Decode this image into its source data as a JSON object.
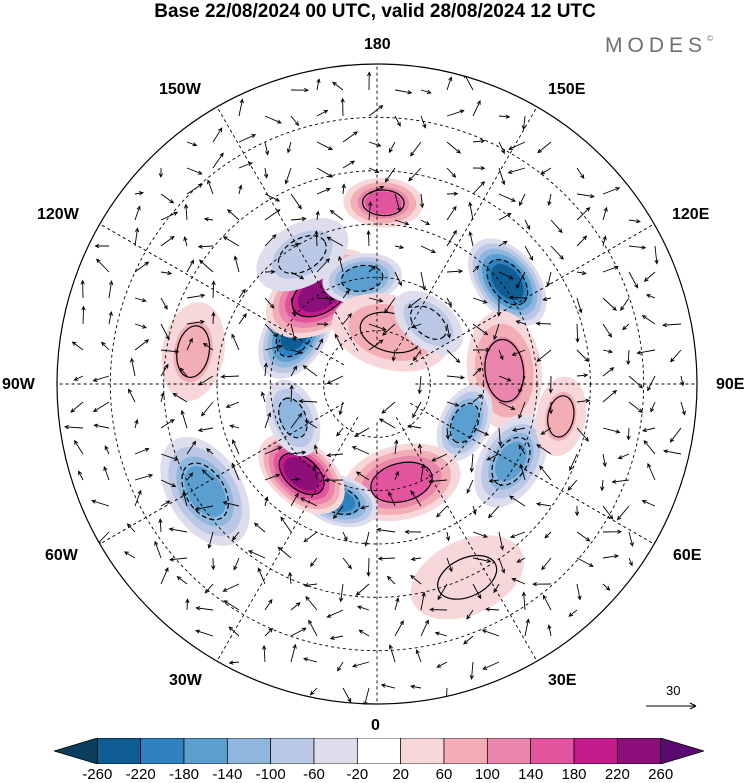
{
  "title": "Base 22/08/2024 00 UTC, valid 28/08/2024 12 UTC",
  "brand": "MODES",
  "brand_mark": "©",
  "longitude_labels": [
    "180",
    "150E",
    "120E",
    "90E",
    "60E",
    "30E",
    "0",
    "30W",
    "60W",
    "90W",
    "120W",
    "150W"
  ],
  "reference_vector": "30",
  "colorbar": {
    "ticks": [
      "-260",
      "-220",
      "-180",
      "-140",
      "-100",
      "-60",
      "-20",
      "20",
      "60",
      "100",
      "140",
      "180",
      "220",
      "260"
    ],
    "colors": [
      "#0b3d5c",
      "#0f5d93",
      "#2f81c0",
      "#5b9fd0",
      "#8fb7de",
      "#bac8e6",
      "#dedded",
      "#ffffff",
      "#f7d7da",
      "#f2adb5",
      "#ea86ab",
      "#e2559e",
      "#c31a8c",
      "#8c0f7a",
      "#5a0a6f"
    ]
  },
  "anomalies": [
    {
      "lat": 56,
      "lon": 178,
      "value": 150
    },
    {
      "lat": 59,
      "lon": 128,
      "value": -240
    },
    {
      "lat": 66,
      "lon": 96,
      "value": 120
    },
    {
      "lat": 72,
      "lon": 66,
      "value": -160
    },
    {
      "lat": 61,
      "lon": 60,
      "value": -140
    },
    {
      "lat": 71,
      "lon": 14,
      "value": 170
    },
    {
      "lat": 67,
      "lon": -18,
      "value": -190
    },
    {
      "lat": 68,
      "lon": -40,
      "value": 240
    },
    {
      "lat": 52,
      "lon": -58,
      "value": -150
    },
    {
      "lat": 73,
      "lon": -68,
      "value": -110
    },
    {
      "lat": 72,
      "lon": -122,
      "value": -230
    },
    {
      "lat": 70,
      "lon": -148,
      "value": 240
    },
    {
      "lat": 70,
      "lon": -172,
      "value": -170
    },
    {
      "lat": 62,
      "lon": -150,
      "value": -70
    },
    {
      "lat": 80,
      "lon": 165,
      "value": 90
    },
    {
      "lat": 75,
      "lon": 140,
      "value": -90
    },
    {
      "lat": 55,
      "lon": -100,
      "value": 60
    },
    {
      "lat": 50,
      "lon": 25,
      "value": 50
    },
    {
      "lat": 55,
      "lon": 80,
      "value": 60
    }
  ]
}
